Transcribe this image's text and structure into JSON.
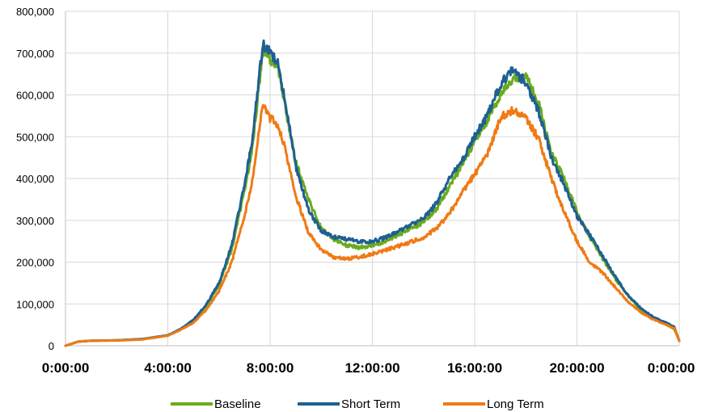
{
  "chart_data": {
    "type": "line",
    "title": "",
    "xlabel": "",
    "ylabel": "",
    "x_unit": "hours",
    "x_range": [
      0,
      24
    ],
    "x_ticks": [
      {
        "hour": 0,
        "label": "0:00:00"
      },
      {
        "hour": 4,
        "label": "4:00:00"
      },
      {
        "hour": 8,
        "label": "8:00:00"
      },
      {
        "hour": 12,
        "label": "12:00:00"
      },
      {
        "hour": 16,
        "label": "16:00:00"
      },
      {
        "hour": 20,
        "label": "20:00:00"
      },
      {
        "hour": 24,
        "label": "0:00:00"
      }
    ],
    "ylim": [
      0,
      800000
    ],
    "y_ticks": [
      {
        "value": 0,
        "label": "0"
      },
      {
        "value": 100000,
        "label": "100,000"
      },
      {
        "value": 200000,
        "label": "200,000"
      },
      {
        "value": 300000,
        "label": "300,000"
      },
      {
        "value": 400000,
        "label": "400,000"
      },
      {
        "value": 500000,
        "label": "500,000"
      },
      {
        "value": 600000,
        "label": "600,000"
      },
      {
        "value": 700000,
        "label": "700,000"
      },
      {
        "value": 800000,
        "label": "800,000"
      }
    ],
    "grid": true,
    "legend_position": "bottom",
    "series": [
      {
        "name": "Baseline",
        "color": "#6aab1e",
        "points": [
          [
            0,
            0
          ],
          [
            0.5,
            10000
          ],
          [
            1,
            12000
          ],
          [
            2,
            13000
          ],
          [
            3,
            16000
          ],
          [
            4,
            25000
          ],
          [
            4.5,
            40000
          ],
          [
            5,
            60000
          ],
          [
            5.5,
            95000
          ],
          [
            6,
            145000
          ],
          [
            6.5,
            230000
          ],
          [
            7,
            370000
          ],
          [
            7.3,
            470000
          ],
          [
            7.6,
            640000
          ],
          [
            7.75,
            715000
          ],
          [
            8,
            685000
          ],
          [
            8.3,
            670000
          ],
          [
            8.6,
            570000
          ],
          [
            9,
            440000
          ],
          [
            9.5,
            350000
          ],
          [
            10,
            280000
          ],
          [
            10.5,
            255000
          ],
          [
            11,
            240000
          ],
          [
            11.5,
            235000
          ],
          [
            12,
            240000
          ],
          [
            12.5,
            250000
          ],
          [
            13,
            265000
          ],
          [
            13.5,
            280000
          ],
          [
            14,
            295000
          ],
          [
            14.5,
            325000
          ],
          [
            15,
            380000
          ],
          [
            15.5,
            430000
          ],
          [
            16,
            490000
          ],
          [
            16.5,
            540000
          ],
          [
            17,
            600000
          ],
          [
            17.5,
            640000
          ],
          [
            18,
            645000
          ],
          [
            18.5,
            580000
          ],
          [
            19,
            460000
          ],
          [
            19.5,
            400000
          ],
          [
            20,
            320000
          ],
          [
            20.5,
            260000
          ],
          [
            21,
            210000
          ],
          [
            21.5,
            160000
          ],
          [
            22,
            120000
          ],
          [
            22.5,
            85000
          ],
          [
            23,
            65000
          ],
          [
            23.5,
            50000
          ],
          [
            23.8,
            40000
          ],
          [
            24,
            12000
          ]
        ]
      },
      {
        "name": "Short Term",
        "color": "#1f5f91",
        "points": [
          [
            0,
            0
          ],
          [
            0.5,
            10000
          ],
          [
            1,
            12000
          ],
          [
            2,
            13000
          ],
          [
            3,
            16000
          ],
          [
            4,
            25000
          ],
          [
            4.5,
            40000
          ],
          [
            5,
            62000
          ],
          [
            5.5,
            98000
          ],
          [
            6,
            150000
          ],
          [
            6.5,
            240000
          ],
          [
            7,
            385000
          ],
          [
            7.3,
            490000
          ],
          [
            7.6,
            660000
          ],
          [
            7.75,
            720000
          ],
          [
            8,
            700000
          ],
          [
            8.3,
            680000
          ],
          [
            8.6,
            580000
          ],
          [
            9,
            430000
          ],
          [
            9.5,
            325000
          ],
          [
            10,
            275000
          ],
          [
            10.5,
            260000
          ],
          [
            11,
            255000
          ],
          [
            11.5,
            248000
          ],
          [
            12,
            250000
          ],
          [
            12.5,
            258000
          ],
          [
            13,
            272000
          ],
          [
            13.5,
            290000
          ],
          [
            14,
            305000
          ],
          [
            14.5,
            340000
          ],
          [
            15,
            400000
          ],
          [
            15.5,
            440000
          ],
          [
            16,
            500000
          ],
          [
            16.5,
            550000
          ],
          [
            17,
            625000
          ],
          [
            17.5,
            660000
          ],
          [
            18,
            630000
          ],
          [
            18.5,
            560000
          ],
          [
            19,
            450000
          ],
          [
            19.5,
            385000
          ],
          [
            20,
            310000
          ],
          [
            20.5,
            265000
          ],
          [
            21,
            215000
          ],
          [
            21.5,
            165000
          ],
          [
            22,
            120000
          ],
          [
            22.5,
            90000
          ],
          [
            23,
            68000
          ],
          [
            23.5,
            55000
          ],
          [
            23.8,
            45000
          ],
          [
            24,
            12000
          ]
        ]
      },
      {
        "name": "Long Term",
        "color": "#f07a15",
        "points": [
          [
            0,
            0
          ],
          [
            0.5,
            10000
          ],
          [
            1,
            12000
          ],
          [
            2,
            12500
          ],
          [
            3,
            15000
          ],
          [
            4,
            24000
          ],
          [
            4.5,
            38000
          ],
          [
            5,
            55000
          ],
          [
            5.5,
            85000
          ],
          [
            6,
            130000
          ],
          [
            6.5,
            200000
          ],
          [
            7,
            310000
          ],
          [
            7.3,
            390000
          ],
          [
            7.6,
            530000
          ],
          [
            7.75,
            580000
          ],
          [
            8,
            545000
          ],
          [
            8.3,
            530000
          ],
          [
            8.6,
            470000
          ],
          [
            9,
            360000
          ],
          [
            9.5,
            270000
          ],
          [
            10,
            230000
          ],
          [
            10.5,
            210000
          ],
          [
            11,
            208000
          ],
          [
            11.5,
            212000
          ],
          [
            12,
            220000
          ],
          [
            12.5,
            228000
          ],
          [
            13,
            238000
          ],
          [
            13.5,
            248000
          ],
          [
            14,
            260000
          ],
          [
            14.5,
            280000
          ],
          [
            15,
            315000
          ],
          [
            15.5,
            365000
          ],
          [
            16,
            410000
          ],
          [
            16.5,
            460000
          ],
          [
            17,
            545000
          ],
          [
            17.5,
            565000
          ],
          [
            18,
            545000
          ],
          [
            18.5,
            495000
          ],
          [
            19,
            400000
          ],
          [
            19.5,
            320000
          ],
          [
            20,
            250000
          ],
          [
            20.5,
            200000
          ],
          [
            21,
            175000
          ],
          [
            21.5,
            140000
          ],
          [
            22,
            105000
          ],
          [
            22.5,
            80000
          ],
          [
            23,
            62000
          ],
          [
            23.5,
            50000
          ],
          [
            23.8,
            42000
          ],
          [
            24,
            12000
          ]
        ]
      }
    ]
  }
}
